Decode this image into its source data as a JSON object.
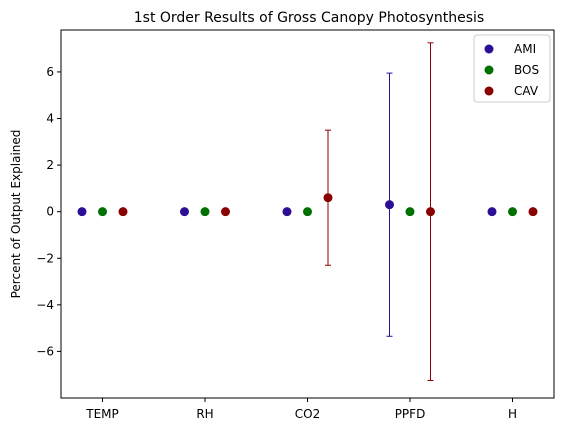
{
  "chart_data": {
    "type": "scatter",
    "title": "1st Order Results of Gross Canopy Photosynthesis",
    "xlabel": "",
    "ylabel": "Percent of Output Explained",
    "categories": [
      "TEMP",
      "RH",
      "CO2",
      "PPFD",
      "H"
    ],
    "ylim": [
      -8,
      7.8
    ],
    "yticks": [
      -6,
      -4,
      -2,
      0,
      2,
      4,
      6
    ],
    "ytick_labels": [
      "−6",
      "−4",
      "−2",
      "0",
      "2",
      "4",
      "6"
    ],
    "grid": false,
    "legend_position": "top-right",
    "series": [
      {
        "name": "AMI",
        "color": "#2c0f96",
        "values": [
          0,
          0,
          0,
          0.3,
          0
        ],
        "error": [
          0,
          0,
          0,
          5.65,
          0
        ]
      },
      {
        "name": "BOS",
        "color": "#007000",
        "values": [
          0,
          0,
          0,
          0,
          0
        ],
        "error": [
          0,
          0,
          0,
          0,
          0
        ]
      },
      {
        "name": "CAV",
        "color": "#8a0000",
        "values": [
          0,
          0,
          0.6,
          0,
          0
        ],
        "error": [
          0,
          0,
          2.9,
          7.25,
          0
        ]
      }
    ]
  }
}
